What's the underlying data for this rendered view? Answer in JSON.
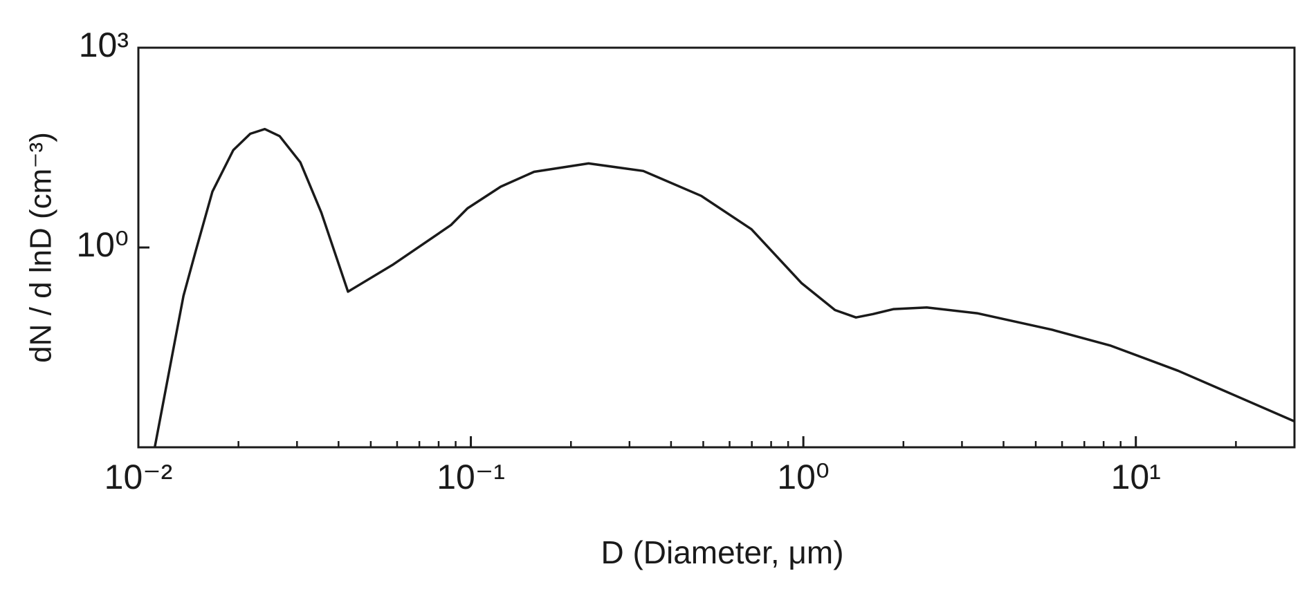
{
  "chart_data": {
    "type": "line",
    "xlabel": "D (Diameter, μm)",
    "ylabel": "dN / d lnD (cm⁻³)",
    "xscale": "log",
    "yscale": "log",
    "xlim": [
      0.01,
      30
    ],
    "ylim": [
      0.001,
      1000
    ],
    "xticks": [
      {
        "value": 0.01,
        "label": "10⁻²"
      },
      {
        "value": 0.1,
        "label": "10⁻¹"
      },
      {
        "value": 1,
        "label": "10⁰"
      },
      {
        "value": 10,
        "label": "10¹"
      }
    ],
    "xminorticks": [
      0.02,
      0.03,
      0.04,
      0.05,
      0.06,
      0.07,
      0.08,
      0.09,
      0.2,
      0.3,
      0.4,
      0.5,
      0.6,
      0.7,
      0.8,
      0.9,
      2,
      3,
      4,
      5,
      6,
      7,
      8,
      9,
      20
    ],
    "yticks": [
      {
        "value": 1,
        "label": "10⁰"
      },
      {
        "value": 1000,
        "label": "10³"
      }
    ],
    "series": [
      {
        "color": "#1a1a1a",
        "x": [
          0.0112,
          0.0127,
          0.01367,
          0.0149,
          0.0167,
          0.0193,
          0.0217,
          0.024,
          0.0266,
          0.0307,
          0.0355,
          0.0427,
          0.0581,
          0.0871,
          0.0977,
          0.123,
          0.155,
          0.226,
          0.33,
          0.493,
          0.698,
          0.989,
          1.245,
          1.44,
          1.62,
          1.87,
          2.35,
          3.33,
          5.61,
          8.41,
          13.4,
          30
        ],
        "values": [
          0.001,
          0.0274,
          0.188,
          0.91,
          6.9,
          29,
          51,
          60,
          47,
          19,
          3.35,
          0.217,
          0.546,
          2.17,
          3.87,
          8.2,
          13.7,
          18.3,
          14.1,
          5.96,
          1.88,
          0.29,
          0.115,
          0.089,
          0.1,
          0.119,
          0.126,
          0.103,
          0.058,
          0.0335,
          0.0141,
          0.00245
        ]
      }
    ]
  }
}
